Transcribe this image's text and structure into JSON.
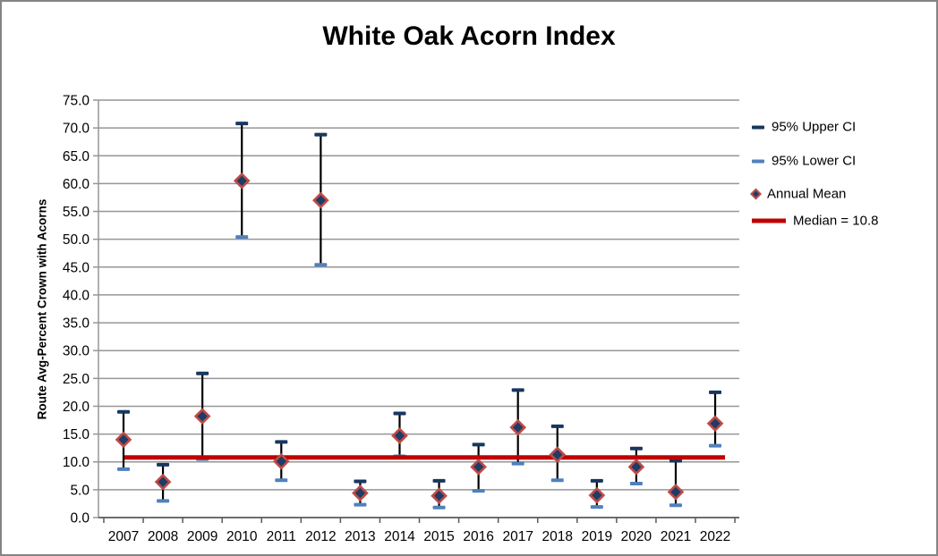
{
  "window": {
    "background": "#FFFFFF",
    "border_color": "#848484"
  },
  "chart_data": {
    "type": "scatter",
    "title": "White Oak Acorn Index",
    "xlabel": "",
    "ylabel": "Route Avg-Percent Crown with Acorns",
    "categories": [
      "2007",
      "2008",
      "2009",
      "2010",
      "2011",
      "2012",
      "2013",
      "2014",
      "2015",
      "2016",
      "2017",
      "2018",
      "2019",
      "2020",
      "2021",
      "2022"
    ],
    "series": [
      {
        "name": "95% Upper CI",
        "marker": "dash",
        "color": "#17375E",
        "values": [
          19.0,
          9.5,
          25.9,
          70.8,
          13.6,
          68.8,
          6.5,
          18.7,
          6.6,
          13.1,
          22.9,
          16.4,
          6.6,
          12.4,
          10.2,
          22.5
        ]
      },
      {
        "name": "95% Lower CI",
        "marker": "dash",
        "color": "#4F81BD",
        "values": [
          8.7,
          3.0,
          10.5,
          50.4,
          6.7,
          45.4,
          2.3,
          11.0,
          1.8,
          4.8,
          9.7,
          6.7,
          1.9,
          6.1,
          2.2,
          12.9
        ]
      },
      {
        "name": "Annual Mean",
        "marker": "diamond",
        "marker_fill": "#1F3C64",
        "marker_outline": "#BE4B48",
        "values": [
          14.0,
          6.4,
          18.2,
          60.5,
          10.1,
          57.0,
          4.4,
          14.7,
          3.9,
          9.1,
          16.2,
          11.3,
          4.0,
          9.1,
          4.6,
          16.9
        ]
      }
    ],
    "median_line": {
      "label": "Median = 10.8",
      "value": 10.8,
      "color": "#C00000"
    },
    "error_bar_color": "#000000",
    "ylim": [
      0,
      75
    ],
    "ytick_step": 5,
    "ytick_decimals": 1,
    "grid": true,
    "gridline_color": "#969696",
    "axis_color": "#595959",
    "legend_position": "right"
  }
}
